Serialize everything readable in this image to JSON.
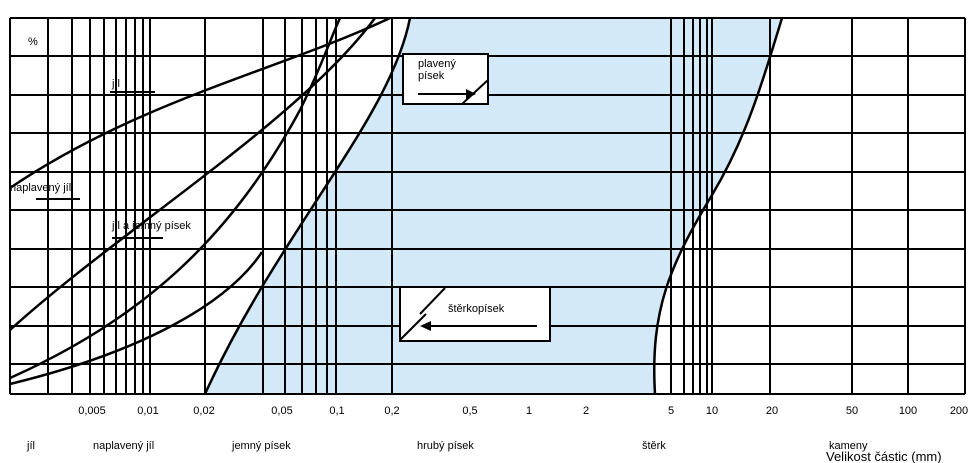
{
  "y_axis_unit": "%",
  "x_axis_label": "Velikost částic (mm)",
  "x_ticks": [
    "0,005",
    "0,01",
    "0,02",
    "0,05",
    "0,1",
    "0,2",
    "0,5",
    "1",
    "2",
    "5",
    "10",
    "20",
    "50",
    "100",
    "200"
  ],
  "soil_classes": [
    "jíl",
    "naplavený jíl",
    "jemný písek",
    "hrubý písek",
    "štěrk",
    "kameny"
  ],
  "curve_labels": {
    "jil": "jíl",
    "naplaveny_jil": "naplavený jíl",
    "jil_jemny_pisek": "jíl a jemný písek"
  },
  "boxes": {
    "plaveny_pisek_line1": "plavený",
    "plaveny_pisek_line2": "písek",
    "sterkopisek": "štěrkopísek"
  },
  "colors": {
    "shaded_band": "#d4e9f8",
    "grid": "#000000"
  }
}
